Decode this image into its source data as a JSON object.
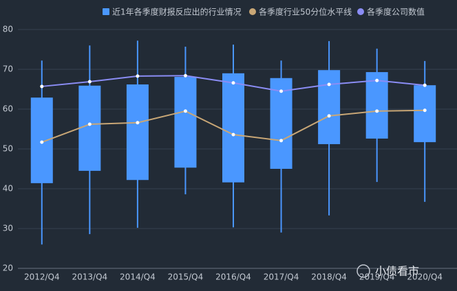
{
  "chart_data": {
    "type": "box",
    "categories": [
      "2012/Q4",
      "2013/Q4",
      "2014/Q4",
      "2015/Q4",
      "2016/Q4",
      "2017/Q4",
      "2018/Q4",
      "2019/Q4",
      "2020/Q4"
    ],
    "ylim": [
      20,
      80
    ],
    "yticks": [
      20,
      30,
      40,
      50,
      60,
      70,
      80
    ],
    "grid": true,
    "series": [
      {
        "name": "近1年各季度财报反应出的行业情况",
        "type": "box",
        "color": "#4a97ff",
        "low": [
          26.0,
          28.6,
          30.2,
          38.6,
          30.3,
          29.0,
          33.3,
          41.7,
          36.7
        ],
        "q1": [
          41.4,
          44.5,
          42.2,
          45.3,
          41.6,
          45.0,
          51.2,
          52.6,
          51.7
        ],
        "q3": [
          62.9,
          65.9,
          66.2,
          68.1,
          69.0,
          67.8,
          69.8,
          69.3,
          66.0
        ],
        "high": [
          72.2,
          76.0,
          77.2,
          75.7,
          76.2,
          72.2,
          77.1,
          75.2,
          72.1
        ]
      },
      {
        "name": "各季度行业50分位水平线",
        "type": "line",
        "color": "#c9a776",
        "values": [
          51.7,
          56.2,
          56.6,
          59.5,
          53.6,
          52.1,
          58.3,
          59.5,
          59.7
        ]
      },
      {
        "name": "各季度公司数值",
        "type": "line",
        "color": "#8b8df5",
        "values": [
          65.7,
          66.9,
          68.3,
          68.4,
          66.6,
          64.5,
          66.2,
          67.2,
          66.0
        ]
      }
    ],
    "watermark": "小债看市"
  }
}
